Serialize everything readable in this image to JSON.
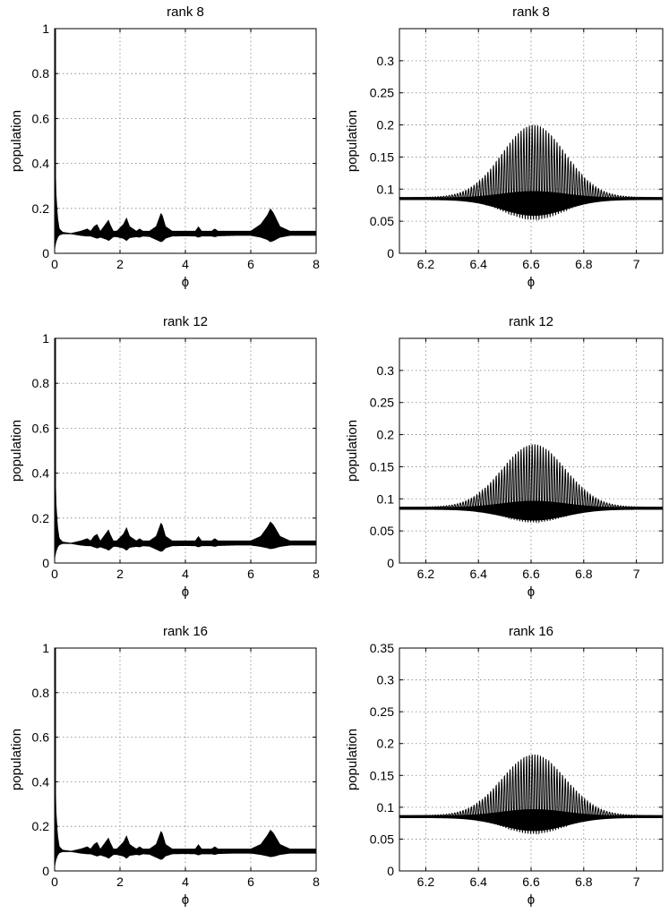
{
  "figure": {
    "background": "#ffffff",
    "trace_color": "#000000",
    "grid_color": "#808080"
  },
  "chart_data": [
    {
      "id": "r8_full",
      "type": "line",
      "title": "rank 8",
      "xlabel": "ϕ",
      "ylabel": "population",
      "xlim": [
        0,
        8
      ],
      "ylim": [
        0,
        1
      ],
      "xticks": [
        0,
        2,
        4,
        6,
        8
      ],
      "xtick_labels": [
        "0",
        "2",
        "4",
        "6",
        "8"
      ],
      "yticks": [
        0,
        0.2,
        0.4,
        0.6,
        0.8,
        1
      ],
      "ytick_labels": [
        "0",
        "0.2",
        "0.4",
        "0.6",
        "0.8",
        "1"
      ],
      "grid": true,
      "envelope": {
        "x": [
          0,
          0.02,
          0.05,
          0.1,
          0.15,
          0.25,
          0.5,
          0.8,
          1.0,
          1.1,
          1.2,
          1.3,
          1.4,
          1.5,
          1.6,
          1.65,
          1.7,
          1.8,
          1.9,
          2.1,
          2.2,
          2.3,
          2.5,
          2.6,
          2.7,
          2.9,
          3.1,
          3.25,
          3.3,
          3.4,
          3.6,
          4.0,
          4.3,
          4.4,
          4.5,
          4.8,
          4.9,
          5.0,
          5.5,
          6.0,
          6.3,
          6.5,
          6.6,
          6.7,
          6.9,
          7.2,
          7.5,
          8.0
        ],
        "upper": [
          1.0,
          0.5,
          0.27,
          0.16,
          0.11,
          0.095,
          0.09,
          0.1,
          0.11,
          0.1,
          0.12,
          0.13,
          0.1,
          0.12,
          0.14,
          0.15,
          0.13,
          0.1,
          0.1,
          0.13,
          0.16,
          0.12,
          0.1,
          0.11,
          0.1,
          0.1,
          0.12,
          0.18,
          0.17,
          0.12,
          0.1,
          0.1,
          0.1,
          0.12,
          0.1,
          0.1,
          0.11,
          0.1,
          0.1,
          0.1,
          0.13,
          0.17,
          0.2,
          0.18,
          0.12,
          0.1,
          0.1,
          0.1
        ],
        "lower": [
          0.0,
          0.03,
          0.05,
          0.07,
          0.08,
          0.085,
          0.085,
          0.078,
          0.075,
          0.075,
          0.07,
          0.065,
          0.07,
          0.065,
          0.06,
          0.055,
          0.06,
          0.072,
          0.072,
          0.065,
          0.055,
          0.068,
          0.072,
          0.07,
          0.075,
          0.073,
          0.06,
          0.05,
          0.052,
          0.066,
          0.075,
          0.076,
          0.075,
          0.07,
          0.075,
          0.075,
          0.072,
          0.076,
          0.078,
          0.078,
          0.07,
          0.06,
          0.05,
          0.055,
          0.07,
          0.078,
          0.078,
          0.078
        ]
      }
    },
    {
      "id": "r8_zoom",
      "type": "line",
      "title": "rank 8",
      "xlabel": "ϕ",
      "ylabel": "population",
      "xlim": [
        6.1,
        7.1
      ],
      "ylim": [
        0,
        0.35
      ],
      "xticks": [
        6.2,
        6.4,
        6.6,
        6.8,
        7
      ],
      "xtick_labels": [
        "6.2",
        "6.4",
        "6.6",
        "6.8",
        "7"
      ],
      "yticks": [
        0,
        0.05,
        0.1,
        0.15,
        0.2,
        0.25,
        0.3
      ],
      "ytick_labels": [
        "0",
        "0.05",
        "0.1",
        "0.15",
        "0.2",
        "0.25",
        "0.3"
      ],
      "grid": true,
      "oscillation": {
        "center": 6.61,
        "baseline": 0.087,
        "peak_upper": 0.2,
        "min_lower": 0.052,
        "width": 0.17,
        "period": 0.0105
      }
    },
    {
      "id": "r12_full",
      "type": "line",
      "title": "rank 12",
      "xlabel": "ϕ",
      "ylabel": "population",
      "xlim": [
        0,
        8
      ],
      "ylim": [
        0,
        1
      ],
      "xticks": [
        0,
        2,
        4,
        6,
        8
      ],
      "xtick_labels": [
        "0",
        "2",
        "4",
        "6",
        "8"
      ],
      "yticks": [
        0,
        0.2,
        0.4,
        0.6,
        0.8,
        1
      ],
      "ytick_labels": [
        "0",
        "0.2",
        "0.4",
        "0.6",
        "0.8",
        "1"
      ],
      "grid": true,
      "envelope": {
        "x": [
          0,
          0.02,
          0.05,
          0.1,
          0.15,
          0.25,
          0.5,
          0.8,
          1.0,
          1.1,
          1.2,
          1.3,
          1.4,
          1.5,
          1.6,
          1.65,
          1.7,
          1.8,
          1.9,
          2.1,
          2.2,
          2.3,
          2.5,
          2.6,
          2.7,
          2.9,
          3.1,
          3.25,
          3.3,
          3.4,
          3.6,
          4.0,
          4.3,
          4.4,
          4.5,
          4.8,
          4.9,
          5.0,
          5.5,
          6.0,
          6.3,
          6.5,
          6.6,
          6.7,
          6.9,
          7.2,
          7.5,
          8.0
        ],
        "upper": [
          1.0,
          0.5,
          0.27,
          0.16,
          0.11,
          0.095,
          0.09,
          0.1,
          0.11,
          0.1,
          0.12,
          0.13,
          0.1,
          0.12,
          0.14,
          0.15,
          0.13,
          0.1,
          0.1,
          0.13,
          0.16,
          0.12,
          0.1,
          0.11,
          0.1,
          0.1,
          0.12,
          0.18,
          0.17,
          0.12,
          0.1,
          0.1,
          0.1,
          0.12,
          0.1,
          0.1,
          0.11,
          0.1,
          0.1,
          0.1,
          0.12,
          0.16,
          0.185,
          0.17,
          0.12,
          0.1,
          0.1,
          0.1
        ],
        "lower": [
          0.0,
          0.03,
          0.05,
          0.07,
          0.08,
          0.085,
          0.085,
          0.078,
          0.075,
          0.075,
          0.07,
          0.065,
          0.07,
          0.065,
          0.06,
          0.055,
          0.06,
          0.072,
          0.072,
          0.065,
          0.055,
          0.068,
          0.072,
          0.07,
          0.075,
          0.073,
          0.06,
          0.05,
          0.052,
          0.066,
          0.075,
          0.076,
          0.075,
          0.07,
          0.075,
          0.075,
          0.072,
          0.076,
          0.078,
          0.078,
          0.072,
          0.066,
          0.062,
          0.064,
          0.072,
          0.078,
          0.078,
          0.078
        ]
      }
    },
    {
      "id": "r12_zoom",
      "type": "line",
      "title": "rank 12",
      "xlabel": "ϕ",
      "ylabel": "population",
      "xlim": [
        6.1,
        7.1
      ],
      "ylim": [
        0,
        0.35
      ],
      "xticks": [
        6.2,
        6.4,
        6.6,
        6.8,
        7
      ],
      "xtick_labels": [
        "6.2",
        "6.4",
        "6.6",
        "6.8",
        "7"
      ],
      "yticks": [
        0,
        0.05,
        0.1,
        0.15,
        0.2,
        0.25,
        0.3
      ],
      "ytick_labels": [
        "0",
        "0.05",
        "0.1",
        "0.15",
        "0.2",
        "0.25",
        "0.3"
      ],
      "grid": true,
      "oscillation": {
        "center": 6.61,
        "baseline": 0.087,
        "peak_upper": 0.185,
        "min_lower": 0.063,
        "width": 0.17,
        "period": 0.0105
      }
    },
    {
      "id": "r16_full",
      "type": "line",
      "title": "rank 16",
      "xlabel": "ϕ",
      "ylabel": "population",
      "xlim": [
        0,
        8
      ],
      "ylim": [
        0,
        1
      ],
      "xticks": [
        0,
        2,
        4,
        6,
        8
      ],
      "xtick_labels": [
        "0",
        "2",
        "4",
        "6",
        "8"
      ],
      "yticks": [
        0,
        0.2,
        0.4,
        0.6,
        0.8,
        1
      ],
      "ytick_labels": [
        "0",
        "0.2",
        "0.4",
        "0.6",
        "0.8",
        "1"
      ],
      "grid": true,
      "envelope": {
        "x": [
          0,
          0.02,
          0.05,
          0.1,
          0.15,
          0.25,
          0.5,
          0.8,
          1.0,
          1.1,
          1.2,
          1.3,
          1.4,
          1.5,
          1.6,
          1.65,
          1.7,
          1.8,
          1.9,
          2.1,
          2.2,
          2.3,
          2.5,
          2.6,
          2.7,
          2.9,
          3.1,
          3.25,
          3.3,
          3.4,
          3.6,
          4.0,
          4.3,
          4.4,
          4.5,
          4.8,
          4.9,
          5.0,
          5.5,
          6.0,
          6.3,
          6.5,
          6.6,
          6.7,
          6.9,
          7.2,
          7.5,
          8.0
        ],
        "upper": [
          1.0,
          0.5,
          0.27,
          0.16,
          0.11,
          0.095,
          0.09,
          0.1,
          0.11,
          0.1,
          0.12,
          0.13,
          0.1,
          0.12,
          0.14,
          0.15,
          0.13,
          0.1,
          0.1,
          0.13,
          0.16,
          0.12,
          0.1,
          0.11,
          0.1,
          0.1,
          0.12,
          0.18,
          0.17,
          0.12,
          0.1,
          0.1,
          0.1,
          0.12,
          0.1,
          0.1,
          0.11,
          0.1,
          0.1,
          0.1,
          0.12,
          0.16,
          0.185,
          0.17,
          0.12,
          0.1,
          0.1,
          0.1
        ],
        "lower": [
          0.0,
          0.03,
          0.05,
          0.07,
          0.08,
          0.085,
          0.085,
          0.078,
          0.075,
          0.075,
          0.07,
          0.065,
          0.07,
          0.065,
          0.06,
          0.055,
          0.06,
          0.072,
          0.072,
          0.065,
          0.055,
          0.068,
          0.072,
          0.07,
          0.075,
          0.073,
          0.06,
          0.05,
          0.052,
          0.066,
          0.075,
          0.076,
          0.075,
          0.07,
          0.075,
          0.075,
          0.072,
          0.076,
          0.078,
          0.078,
          0.072,
          0.066,
          0.062,
          0.064,
          0.072,
          0.078,
          0.078,
          0.078
        ]
      }
    },
    {
      "id": "r16_zoom",
      "type": "line",
      "title": "rank 16",
      "xlabel": "ϕ",
      "ylabel": "population",
      "xlim": [
        6.1,
        7.1
      ],
      "ylim": [
        0,
        0.35
      ],
      "xticks": [
        6.2,
        6.4,
        6.6,
        6.8,
        7
      ],
      "xtick_labels": [
        "6.2",
        "6.4",
        "6.6",
        "6.8",
        "7"
      ],
      "yticks": [
        0,
        0.05,
        0.1,
        0.15,
        0.2,
        0.25,
        0.3,
        0.35
      ],
      "ytick_labels": [
        "0",
        "0.05",
        "0.1",
        "0.15",
        "0.2",
        "0.25",
        "0.3",
        "0.35"
      ],
      "grid": true,
      "oscillation": {
        "center": 6.61,
        "baseline": 0.087,
        "peak_upper": 0.183,
        "min_lower": 0.058,
        "width": 0.17,
        "period": 0.0105
      }
    }
  ]
}
